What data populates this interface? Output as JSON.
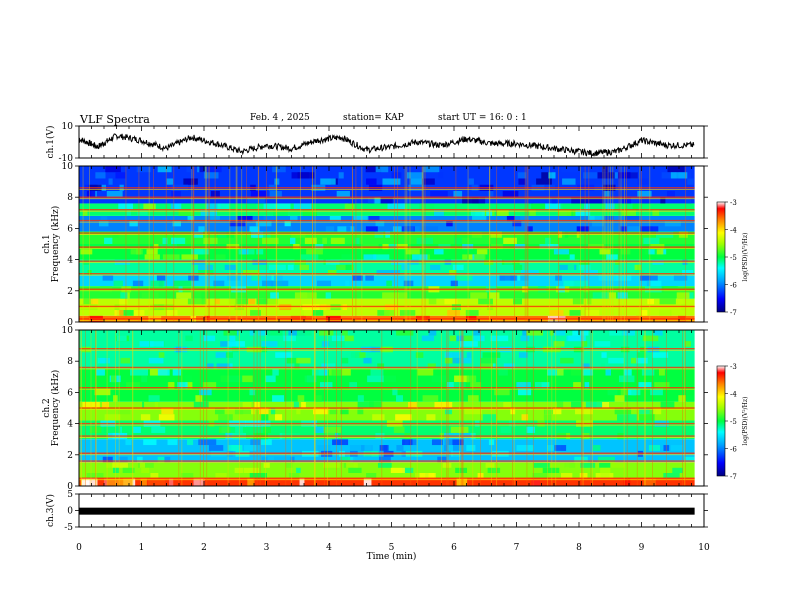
{
  "header": {
    "title": "VLF Spectra",
    "date": "Feb. 4 , 2025",
    "station": "station= KAP",
    "start_ut": "start UT =  16: 0  : 1"
  },
  "chart_data": [
    {
      "type": "line",
      "panel": "ch1-waveform",
      "ylabel": "ch.1(V)",
      "ylim": [
        -10,
        10
      ],
      "yticks": [
        "10",
        "-10"
      ],
      "xlim": [
        0,
        9.85
      ],
      "series": [
        {
          "x": [
            0,
            0.3,
            0.6,
            1.0,
            1.4,
            1.8,
            2.2,
            2.6,
            3.0,
            3.4,
            3.8,
            4.2,
            4.6,
            5.0,
            5.4,
            5.8,
            6.2,
            6.6,
            7.0,
            7.4,
            7.8,
            8.2,
            8.6,
            9.0,
            9.4,
            9.85
          ],
          "values": [
            2,
            -3,
            4,
            1,
            -4,
            3,
            -1,
            -6,
            -2,
            -4,
            1,
            3,
            -5,
            -3,
            0,
            -2,
            2,
            -1,
            -1,
            -3,
            -5,
            -7,
            -6,
            1,
            -2,
            -2
          ]
        }
      ]
    },
    {
      "type": "heatmap",
      "panel": "ch1-spectrogram",
      "ylabel": "ch.1\nFrequency (kHz)",
      "ylim": [
        0,
        10
      ],
      "yticks": [
        "0",
        "2",
        "4",
        "6",
        "8",
        "10"
      ],
      "xlim": [
        0,
        9.85
      ],
      "scale": "log(PSD)",
      "bands": [
        {
          "f": [
            0,
            0.4
          ],
          "level": -3.6
        },
        {
          "f": [
            0.4,
            1.5
          ],
          "level": -4.4
        },
        {
          "f": [
            1.5,
            2.3
          ],
          "level": -4.9
        },
        {
          "f": [
            2.3,
            3.0
          ],
          "level": -5.6
        },
        {
          "f": [
            3.0,
            4.0
          ],
          "level": -5.2
        },
        {
          "f": [
            4.0,
            5.0
          ],
          "level": -5.0
        },
        {
          "f": [
            5.0,
            5.8
          ],
          "level": -4.9
        },
        {
          "f": [
            5.8,
            6.8
          ],
          "level": -6.0
        },
        {
          "f": [
            6.8,
            7.6
          ],
          "level": -5.1
        },
        {
          "f": [
            7.6,
            10.0
          ],
          "level": -6.3
        }
      ],
      "lines": [
        0.2,
        1.0,
        2.1,
        3.1,
        3.9,
        4.8,
        5.7,
        6.5,
        7.2,
        8.0,
        8.6
      ]
    },
    {
      "type": "heatmap",
      "panel": "ch2-spectrogram",
      "ylabel": "ch.2\nFrequency (kHz)",
      "ylim": [
        0,
        10
      ],
      "yticks": [
        "0",
        "2",
        "4",
        "6",
        "8",
        "10"
      ],
      "xlim": [
        0,
        9.85
      ],
      "scale": "log(PSD)",
      "bands": [
        {
          "f": [
            0,
            0.5
          ],
          "level": -3.4
        },
        {
          "f": [
            0.5,
            1.5
          ],
          "level": -4.6
        },
        {
          "f": [
            1.5,
            3.0
          ],
          "level": -5.7
        },
        {
          "f": [
            3.0,
            4.2
          ],
          "level": -5.1
        },
        {
          "f": [
            4.2,
            5.4
          ],
          "level": -4.6
        },
        {
          "f": [
            5.4,
            7.5
          ],
          "level": -5.0
        },
        {
          "f": [
            7.5,
            10.0
          ],
          "level": -5.2
        }
      ],
      "lines": [
        0.5,
        1.6,
        2.1,
        3.2,
        4.0,
        5.0,
        6.3,
        7.6,
        8.8
      ]
    },
    {
      "type": "line",
      "panel": "ch3-waveform",
      "ylabel": "ch.3(V)",
      "ylim": [
        -5,
        5
      ],
      "yticks": [
        "5",
        "0",
        "-5"
      ],
      "xlim": [
        0,
        9.85
      ],
      "series": [
        {
          "x": [
            0,
            9.85
          ],
          "values": [
            -0.2,
            -0.2
          ]
        }
      ]
    }
  ],
  "x_axis": {
    "label": "Time  (min)",
    "range": [
      0,
      10
    ],
    "ticks": [
      "0",
      "1",
      "2",
      "3",
      "4",
      "5",
      "6",
      "7",
      "8",
      "9",
      "10"
    ]
  },
  "colorbar": {
    "label": "log(PSD)(V²/Hz)",
    "range": [
      -7,
      -3
    ],
    "ticks": [
      "-3",
      "-4",
      "-5",
      "-6",
      "-7"
    ]
  }
}
